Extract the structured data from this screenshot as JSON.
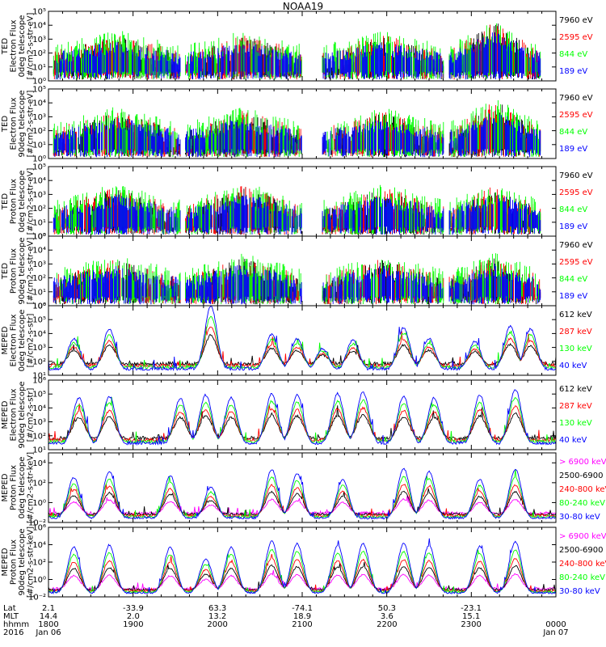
{
  "figure": {
    "title": "NOAA19",
    "colors": {
      "black": "#000000",
      "red": "#ff0000",
      "green": "#00ff00",
      "blue": "#0000ff",
      "magenta": "#ff00ff"
    }
  },
  "chart_data": [
    {
      "type": "scatter",
      "ylabel": [
        "TED",
        "Electron Flux",
        "0deg telescope",
        "[#/cm2-s-str-eV]"
      ],
      "y_log": true,
      "ylim_exp": [
        0,
        5
      ],
      "ytick_labels": [
        "10⁰",
        "10¹",
        "10²",
        "10³",
        "10⁴",
        "10⁵"
      ],
      "series": [
        {
          "name": "7960 eV",
          "color": "#000000"
        },
        {
          "name": "2595 eV",
          "color": "#ff0000"
        },
        {
          "name": "844 eV",
          "color": "#00ff00"
        },
        {
          "name": "189 eV",
          "color": "#0000ff"
        }
      ],
      "passes": [
        {
          "start": 0.01,
          "end": 0.26,
          "peak": 2.3
        },
        {
          "start": 0.27,
          "end": 0.5,
          "peak": 2.2
        },
        {
          "start": 0.54,
          "end": 0.78,
          "peak": 2.1
        },
        {
          "start": 0.79,
          "end": 0.97,
          "peak": 4.0
        }
      ]
    },
    {
      "type": "scatter",
      "ylabel": [
        "TED",
        "Electron Flux",
        "90deg telescope",
        "[#/cm2-s-str-eV]"
      ],
      "y_log": true,
      "ylim_exp": [
        0,
        5
      ],
      "ytick_labels": [
        "10⁰",
        "10¹",
        "10²",
        "10³",
        "10⁴",
        "10⁵"
      ],
      "series": [
        {
          "name": "7960 eV",
          "color": "#000000"
        },
        {
          "name": "2595 eV",
          "color": "#ff0000"
        },
        {
          "name": "844 eV",
          "color": "#00ff00"
        },
        {
          "name": "189 eV",
          "color": "#0000ff"
        }
      ],
      "passes": [
        {
          "start": 0.01,
          "end": 0.26,
          "peak": 2.5
        },
        {
          "start": 0.27,
          "end": 0.5,
          "peak": 2.4
        },
        {
          "start": 0.54,
          "end": 0.78,
          "peak": 2.3
        },
        {
          "start": 0.79,
          "end": 0.97,
          "peak": 3.8
        }
      ]
    },
    {
      "type": "scatter",
      "ylabel": [
        "TED",
        "Proton Flux",
        "0deg telescope",
        "[#/cm2-s-str-eV]"
      ],
      "y_log": true,
      "ylim_exp": [
        0,
        5
      ],
      "ytick_labels": [
        "10⁰",
        "10¹",
        "10²",
        "10³",
        "10⁴",
        "10⁵"
      ],
      "series": [
        {
          "name": "7960 eV",
          "color": "#000000"
        },
        {
          "name": "2595 eV",
          "color": "#ff0000"
        },
        {
          "name": "844 eV",
          "color": "#00ff00"
        },
        {
          "name": "189 eV",
          "color": "#0000ff"
        }
      ],
      "passes": [
        {
          "start": 0.01,
          "end": 0.26,
          "peak": 2.6
        },
        {
          "start": 0.27,
          "end": 0.5,
          "peak": 2.8
        },
        {
          "start": 0.54,
          "end": 0.78,
          "peak": 2.6
        },
        {
          "start": 0.79,
          "end": 0.97,
          "peak": 2.8
        }
      ]
    },
    {
      "type": "scatter",
      "ylabel": [
        "TED",
        "Proton Flux",
        "90deg telescope",
        "[#/cm2-s-str-eV]"
      ],
      "y_log": true,
      "ylim_exp": [
        0,
        5
      ],
      "ytick_labels": [
        "10⁰",
        "10¹",
        "10²",
        "10³",
        "10⁴",
        "10⁵"
      ],
      "series": [
        {
          "name": "7960 eV",
          "color": "#000000"
        },
        {
          "name": "2595 eV",
          "color": "#ff0000"
        },
        {
          "name": "844 eV",
          "color": "#00ff00"
        },
        {
          "name": "189 eV",
          "color": "#0000ff"
        }
      ],
      "passes": [
        {
          "start": 0.01,
          "end": 0.26,
          "peak": 2.2
        },
        {
          "start": 0.27,
          "end": 0.5,
          "peak": 2.6
        },
        {
          "start": 0.54,
          "end": 0.78,
          "peak": 2.3
        },
        {
          "start": 0.79,
          "end": 0.97,
          "peak": 2.6
        }
      ]
    },
    {
      "type": "line",
      "ylabel": [
        "MEPED",
        "Electron Flux",
        "0deg telescope",
        "[#/cm2-s-str]"
      ],
      "y_log": true,
      "ylim_exp": [
        1,
        6
      ],
      "ytick_labels": [
        "10¹",
        "10²",
        "10³",
        "10⁴",
        "10⁵",
        "10⁶"
      ],
      "series": [
        {
          "name": "612 keV",
          "color": "#000000"
        },
        {
          "name": "287 keV",
          "color": "#ff0000"
        },
        {
          "name": "130 keV",
          "color": "#00ff00"
        },
        {
          "name": "40 keV",
          "color": "#0000ff"
        }
      ],
      "peaks": [
        {
          "t": 0.05,
          "h": 3.3
        },
        {
          "t": 0.12,
          "h": 4.0
        },
        {
          "t": 0.32,
          "h": 5.6
        },
        {
          "t": 0.44,
          "h": 3.6
        },
        {
          "t": 0.49,
          "h": 3.3
        },
        {
          "t": 0.54,
          "h": 2.6
        },
        {
          "t": 0.6,
          "h": 3.2
        },
        {
          "t": 0.7,
          "h": 4.1
        },
        {
          "t": 0.75,
          "h": 3.3
        },
        {
          "t": 0.84,
          "h": 3.1
        },
        {
          "t": 0.91,
          "h": 4.2
        },
        {
          "t": 0.95,
          "h": 4.0
        }
      ]
    },
    {
      "type": "line",
      "ylabel": [
        "MEPED",
        "Electron Flux",
        "90deg telescope",
        "[#/cm2-s-str]"
      ],
      "y_log": true,
      "ylim_exp": [
        1,
        6
      ],
      "ytick_labels": [
        "10¹",
        "10²",
        "10³",
        "10⁴",
        "10⁵",
        "10⁶"
      ],
      "series": [
        {
          "name": "612 keV",
          "color": "#000000"
        },
        {
          "name": "287 keV",
          "color": "#ff0000"
        },
        {
          "name": "130 keV",
          "color": "#00ff00"
        },
        {
          "name": "40 keV",
          "color": "#0000ff"
        }
      ],
      "peaks": [
        {
          "t": 0.06,
          "h": 4.4
        },
        {
          "t": 0.12,
          "h": 4.5
        },
        {
          "t": 0.26,
          "h": 4.4
        },
        {
          "t": 0.31,
          "h": 4.6
        },
        {
          "t": 0.36,
          "h": 4.4
        },
        {
          "t": 0.44,
          "h": 4.7
        },
        {
          "t": 0.49,
          "h": 4.6
        },
        {
          "t": 0.57,
          "h": 4.7
        },
        {
          "t": 0.62,
          "h": 4.8
        },
        {
          "t": 0.7,
          "h": 4.5
        },
        {
          "t": 0.76,
          "h": 4.4
        },
        {
          "t": 0.85,
          "h": 4.6
        },
        {
          "t": 0.92,
          "h": 5.0
        }
      ]
    },
    {
      "type": "line",
      "ylabel": [
        "MEPED",
        "Proton Flux",
        "0deg telescope",
        "[#/cm2-s-str-keV]"
      ],
      "y_log": true,
      "ylim_exp": [
        -2,
        5
      ],
      "ytick_labels": [
        "10⁻²",
        "10⁰",
        "10²",
        "10⁴"
      ],
      "ytick_exps": [
        -2,
        0,
        2,
        4
      ],
      "series": [
        {
          "name": "> 6900 keV",
          "color": "#ff00ff"
        },
        {
          "name": "2500-6900",
          "color": "#000000"
        },
        {
          "name": "240-800 keV",
          "color": "#ff0000"
        },
        {
          "name": "80-240 keV",
          "color": "#00ff00"
        },
        {
          "name": "30-80 keV",
          "color": "#0000ff"
        }
      ],
      "peaks": [
        {
          "t": 0.05,
          "h": 2.2
        },
        {
          "t": 0.12,
          "h": 2.8
        },
        {
          "t": 0.24,
          "h": 2.4
        },
        {
          "t": 0.32,
          "h": 1.2
        },
        {
          "t": 0.44,
          "h": 3.0
        },
        {
          "t": 0.49,
          "h": 2.6
        },
        {
          "t": 0.58,
          "h": 2.0
        },
        {
          "t": 0.7,
          "h": 3.1
        },
        {
          "t": 0.75,
          "h": 2.8
        },
        {
          "t": 0.85,
          "h": 2.0
        },
        {
          "t": 0.92,
          "h": 3.0
        }
      ]
    },
    {
      "type": "line",
      "ylabel": [
        "MEPED",
        "Proton Flux",
        "90deg telescope",
        "[#/cm2-s-str-keV]"
      ],
      "y_log": true,
      "ylim_exp": [
        -2,
        6
      ],
      "ytick_labels": [
        "10⁻²",
        "10⁰",
        "10²",
        "10⁴",
        "10⁶"
      ],
      "ytick_exps": [
        -2,
        0,
        2,
        4,
        6
      ],
      "series": [
        {
          "name": "> 6900 keV",
          "color": "#ff00ff"
        },
        {
          "name": "2500-6900",
          "color": "#000000"
        },
        {
          "name": "240-800 keV",
          "color": "#ff0000"
        },
        {
          "name": "80-240 keV",
          "color": "#00ff00"
        },
        {
          "name": "30-80 keV",
          "color": "#0000ff"
        }
      ],
      "peaks": [
        {
          "t": 0.05,
          "h": 3.4
        },
        {
          "t": 0.12,
          "h": 3.6
        },
        {
          "t": 0.24,
          "h": 3.4
        },
        {
          "t": 0.31,
          "h": 2.0
        },
        {
          "t": 0.36,
          "h": 3.4
        },
        {
          "t": 0.44,
          "h": 4.1
        },
        {
          "t": 0.49,
          "h": 3.8
        },
        {
          "t": 0.57,
          "h": 3.6
        },
        {
          "t": 0.62,
          "h": 3.8
        },
        {
          "t": 0.7,
          "h": 3.8
        },
        {
          "t": 0.75,
          "h": 3.6
        },
        {
          "t": 0.85,
          "h": 3.5
        },
        {
          "t": 0.92,
          "h": 4.0
        }
      ]
    }
  ],
  "x_axis": {
    "row_labels": [
      "Lat",
      "MLT",
      "hhmm",
      "2016"
    ],
    "ticks": [
      {
        "t": 0.0,
        "lat": "2.1",
        "mlt": "14.4",
        "hhmm": "1800",
        "date": "Jan 06"
      },
      {
        "t": 0.167,
        "lat": "-33.9",
        "mlt": "2.0",
        "hhmm": "1900",
        "date": ""
      },
      {
        "t": 0.333,
        "lat": "63.3",
        "mlt": "13.2",
        "hhmm": "2000",
        "date": ""
      },
      {
        "t": 0.5,
        "lat": "-74.1",
        "mlt": "18.9",
        "hhmm": "2100",
        "date": ""
      },
      {
        "t": 0.667,
        "lat": "50.3",
        "mlt": "3.6",
        "hhmm": "2200",
        "date": ""
      },
      {
        "t": 0.833,
        "lat": "-23.1",
        "mlt": "15.1",
        "hhmm": "2300",
        "date": ""
      },
      {
        "t": 1.0,
        "lat": "",
        "mlt": "",
        "hhmm": "0000",
        "date": "Jan 07"
      }
    ]
  }
}
